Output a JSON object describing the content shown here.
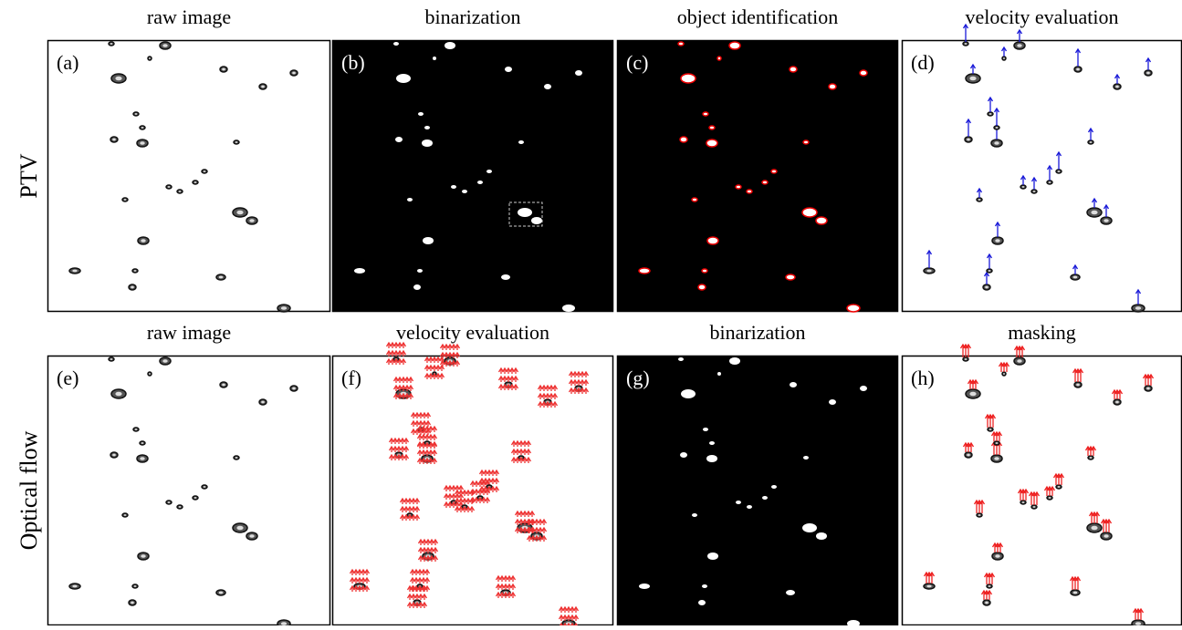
{
  "rows": [
    {
      "label": "PTV",
      "panels": [
        {
          "label": "(a)",
          "title": "raw image"
        },
        {
          "label": "(b)",
          "title": "binarization"
        },
        {
          "label": "(c)",
          "title": "object identification"
        },
        {
          "label": "(d)",
          "title": "velocity evaluation"
        }
      ]
    },
    {
      "label": "Optical flow",
      "panels": [
        {
          "label": "(e)",
          "title": "raw image"
        },
        {
          "label": "(f)",
          "title": "velocity evaluation"
        },
        {
          "label": "(g)",
          "title": "binarization"
        },
        {
          "label": "(h)",
          "title": "masking"
        }
      ]
    }
  ]
}
